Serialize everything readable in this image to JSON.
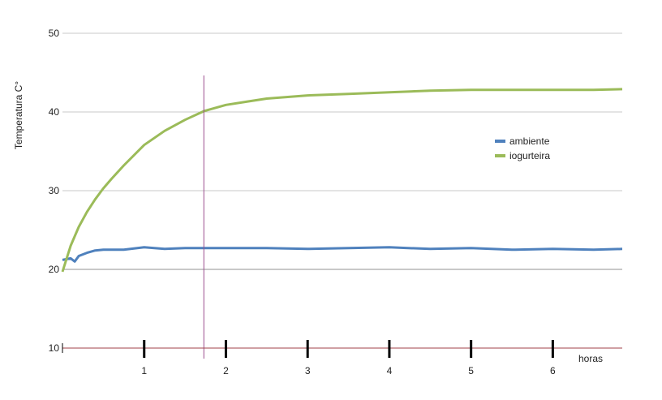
{
  "chart_data": {
    "type": "line",
    "title": "",
    "xlabel": "horas",
    "ylabel": "Temperatura C°",
    "xlim": [
      0,
      6.85
    ],
    "ylim": [
      10,
      50
    ],
    "yticks": [
      10,
      20,
      30,
      40,
      50
    ],
    "xticks": [
      1,
      2,
      3,
      4,
      5,
      6
    ],
    "grid": "horizontal",
    "legend_position": "right",
    "vertical_marker_x": 1.73,
    "colors": {
      "ambiente": "#4f81bd",
      "iogurteira": "#9bbb59",
      "x_axis": "#a0404a",
      "marker": "#9b4f8f",
      "grid": "#c8c8c8"
    },
    "series": [
      {
        "name": "ambiente",
        "x": [
          0,
          0.1,
          0.15,
          0.2,
          0.3,
          0.4,
          0.5,
          0.75,
          1.0,
          1.25,
          1.5,
          1.75,
          2.0,
          2.5,
          3.0,
          3.5,
          4.0,
          4.5,
          5.0,
          5.5,
          6.0,
          6.5,
          6.85
        ],
        "y": [
          21.2,
          21.4,
          21.0,
          21.7,
          22.1,
          22.4,
          22.5,
          22.5,
          22.8,
          22.6,
          22.7,
          22.7,
          22.7,
          22.7,
          22.6,
          22.7,
          22.8,
          22.6,
          22.7,
          22.5,
          22.6,
          22.5,
          22.6
        ]
      },
      {
        "name": "iogurteira",
        "x": [
          0,
          0.1,
          0.2,
          0.3,
          0.4,
          0.5,
          0.6,
          0.75,
          1.0,
          1.25,
          1.5,
          1.73,
          2.0,
          2.25,
          2.5,
          3.0,
          3.5,
          4.0,
          4.5,
          5.0,
          5.5,
          6.0,
          6.5,
          6.85
        ],
        "y": [
          19.7,
          23.0,
          25.4,
          27.3,
          28.9,
          30.3,
          31.5,
          33.2,
          35.8,
          37.6,
          39.0,
          40.1,
          40.9,
          41.3,
          41.7,
          42.1,
          42.3,
          42.5,
          42.7,
          42.8,
          42.8,
          42.8,
          42.8,
          42.9
        ]
      }
    ]
  }
}
